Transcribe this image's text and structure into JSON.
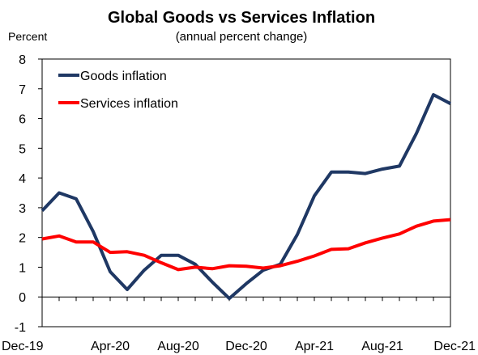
{
  "chart_data": {
    "type": "line",
    "title": "Global Goods vs Services Inflation",
    "subtitle": "(annual percent change)",
    "y_unit_label": "Percent",
    "x_tick_labels": [
      "Dec-19",
      "Apr-20",
      "Aug-20",
      "Dec-20",
      "Apr-21",
      "Aug-21",
      "Dec-21"
    ],
    "x_tick_index": [
      0,
      4,
      8,
      12,
      16,
      20,
      24
    ],
    "x": [
      "Dec-19",
      "Jan-20",
      "Feb-20",
      "Mar-20",
      "Apr-20",
      "May-20",
      "Jun-20",
      "Jul-20",
      "Aug-20",
      "Sep-20",
      "Oct-20",
      "Nov-20",
      "Dec-20",
      "Jan-21",
      "Feb-21",
      "Mar-21",
      "Apr-21",
      "May-21",
      "Jun-21",
      "Jul-21",
      "Aug-21",
      "Sep-21",
      "Oct-21",
      "Nov-21",
      "Dec-21"
    ],
    "ylim": [
      -1,
      8
    ],
    "y_ticks": [
      -1,
      0,
      1,
      2,
      3,
      4,
      5,
      6,
      7,
      8
    ],
    "legend_position": "top-left",
    "series": [
      {
        "name": "Goods inflation",
        "color": "#1f3864",
        "values": [
          2.9,
          3.5,
          3.3,
          2.2,
          0.85,
          0.25,
          0.9,
          1.4,
          1.4,
          1.1,
          0.5,
          -0.05,
          0.45,
          0.9,
          1.1,
          2.1,
          3.4,
          4.2,
          4.2,
          4.15,
          4.3,
          4.4,
          5.5,
          6.8,
          6.5
        ]
      },
      {
        "name": "Services inflation",
        "color": "#ff0000",
        "values": [
          1.95,
          2.05,
          1.85,
          1.85,
          1.5,
          1.52,
          1.4,
          1.15,
          0.92,
          1.0,
          0.95,
          1.05,
          1.03,
          0.97,
          1.05,
          1.2,
          1.38,
          1.6,
          1.62,
          1.82,
          1.98,
          2.12,
          2.38,
          2.55,
          2.6
        ]
      }
    ]
  }
}
